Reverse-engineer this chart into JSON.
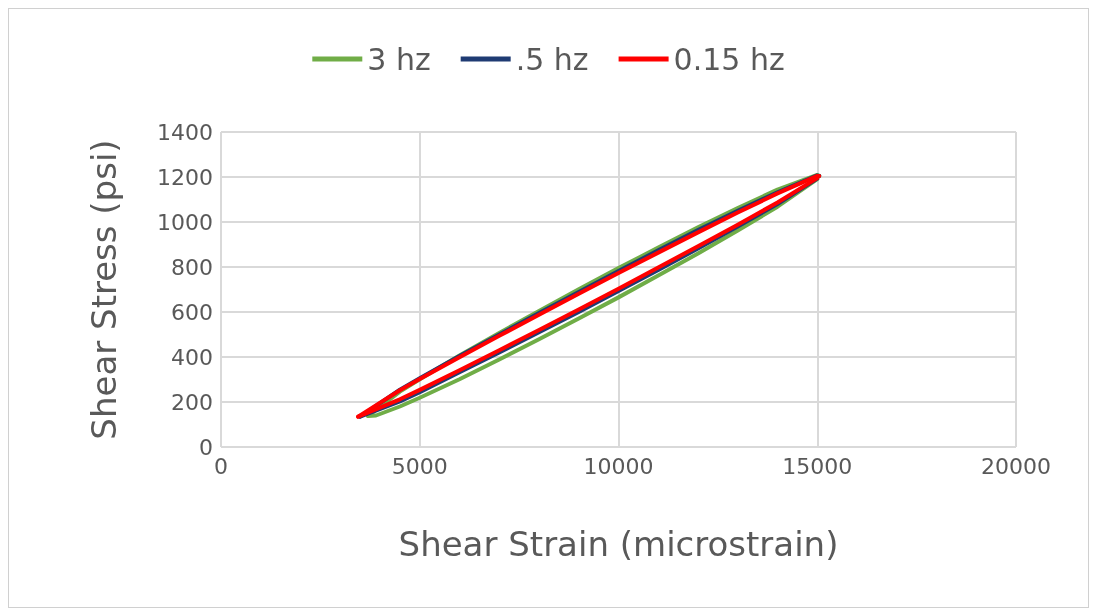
{
  "chart_data": {
    "type": "line",
    "xlabel": "Shear Strain (microstrain)",
    "ylabel": "Shear Stress (psi)",
    "xlim": [
      0,
      20000
    ],
    "xticks": [
      0,
      5000,
      10000,
      15000,
      20000
    ],
    "ylim": [
      0,
      1400
    ],
    "yticks": [
      0,
      200,
      400,
      600,
      800,
      1000,
      1200,
      1400
    ],
    "grid": true,
    "legend": "top",
    "marker": "none",
    "line_style": "solid",
    "series": [
      {
        "name": "3 hz",
        "color": "#70ad47",
        "x": [
          3700,
          4500,
          5000,
          6000,
          7000,
          8000,
          9000,
          10000,
          11000,
          12000,
          13000,
          14000,
          15000,
          15050
        ],
        "values": [
          138,
          246,
          301,
          407,
          507,
          605,
          701,
          795,
          886,
          976,
          1062,
          1144,
          1209,
          1205
        ]
      },
      {
        "color": "#70ad47",
        "x": [
          3700,
          3900,
          4500,
          5000,
          6000,
          7000,
          8000,
          9000,
          10000,
          11000,
          12000,
          13000,
          14000,
          15000
        ],
        "values": [
          138,
          140,
          180,
          219,
          301,
          389,
          479,
          571,
          665,
          762,
          860,
          962,
          1068,
          1191
        ]
      },
      {
        "name": ".5 hz",
        "color": "#1f3b73",
        "x": [
          3500,
          4500,
          5000,
          6000,
          7000,
          8000,
          9000,
          10000,
          11000,
          12000,
          13000,
          14000,
          15000,
          15050
        ],
        "values": [
          135,
          255,
          306,
          405,
          500,
          595,
          689,
          782,
          874,
          964,
          1050,
          1132,
          1207,
          1205
        ]
      },
      {
        "color": "#1f3b73",
        "x": [
          3500,
          4500,
          5000,
          6000,
          7000,
          8000,
          9000,
          10000,
          11000,
          12000,
          13000,
          14000,
          15000
        ],
        "values": [
          135,
          203,
          244,
          332,
          420,
          510,
          600,
          693,
          787,
          882,
          980,
          1080,
          1193
        ]
      },
      {
        "name": "0.15 hz",
        "color": "#ff0000",
        "x": [
          3450,
          4500,
          5000,
          6000,
          7000,
          8000,
          9000,
          10000,
          11000,
          12000,
          13000,
          14000,
          15000,
          15050
        ],
        "values": [
          135,
          252,
          302,
          399,
          494,
          588,
          681,
          773,
          864,
          954,
          1042,
          1127,
          1205,
          1205
        ]
      },
      {
        "color": "#ff0000",
        "x": [
          3450,
          4500,
          5000,
          6000,
          7000,
          8000,
          9000,
          10000,
          11000,
          12000,
          13000,
          14000,
          15000
        ],
        "values": [
          135,
          212,
          254,
          341,
          430,
          520,
          611,
          703,
          798,
          892,
          988,
          1087,
          1195
        ]
      }
    ]
  }
}
